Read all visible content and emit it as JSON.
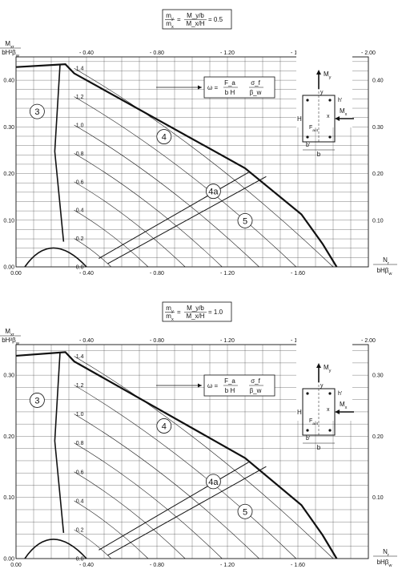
{
  "chart_data": [
    {
      "type": "interaction-diagram",
      "ratio_label": {
        "left_num": "m_y",
        "left_den": "m_x",
        "mid_num": "M_y/b",
        "mid_den": "M_x/H",
        "value": "= 0.5"
      },
      "ylabel": {
        "num": "M_xr",
        "den": "bH²β_w"
      },
      "xlabel": {
        "num": "N_r",
        "den": "bHβ_w"
      },
      "xlim": [
        0.0,
        -2.0
      ],
      "ylim": [
        0.0,
        0.45
      ],
      "bottom_ticks": [
        "0.00",
        "- 0.40",
        "- 0.80",
        "- 1.20",
        "- 1.60"
      ],
      "top_ticks": [
        "- 0.40",
        "- 0.80",
        "- 1.20",
        "- 1.60",
        "- 2.00"
      ],
      "left_ticks": [
        "0.00",
        "0.10",
        "0.20",
        "0.30",
        "0.40"
      ],
      "right_ticks": [
        "0.10",
        "0.20",
        "0.30",
        "0.40"
      ],
      "omega_values": [
        "1.4",
        "1.2",
        "1.0",
        "0.8",
        "0.6",
        "0.4",
        "0.2",
        "0.0"
      ],
      "zones": [
        "3",
        "4",
        "4a",
        "5"
      ],
      "omega_formula": {
        "prefix": "ω =",
        "a_num": "F_a",
        "a_den": "b H",
        "b_num": "σ_f",
        "b_den": "β_w"
      },
      "section_labels": {
        "My": "M_y",
        "Mx": "M_x",
        "y": "y",
        "x": "x",
        "H": "H",
        "b": "b",
        "bp": "b'",
        "hp": "h'",
        "Fa4": "F_a/4"
      }
    },
    {
      "type": "interaction-diagram",
      "ratio_label": {
        "left_num": "m_y",
        "left_den": "m_x",
        "mid_num": "M_y/b",
        "mid_den": "M_x/H",
        "value": "= 1.0"
      },
      "ylabel": {
        "num": "M_xr",
        "den": "bH²β_w"
      },
      "xlabel": {
        "num": "N_r",
        "den": "bHβ_w"
      },
      "xlim": [
        0.0,
        -2.0
      ],
      "ylim": [
        0.0,
        0.35
      ],
      "bottom_ticks": [
        "0.00",
        "- 0.40",
        "- 0.80",
        "- 1.20",
        "- 1.60"
      ],
      "top_ticks": [
        "- 0.40",
        "- 0.80",
        "- 1.20",
        "- 1.60",
        "- 2.00"
      ],
      "left_ticks": [
        "0.00",
        "0.10",
        "0.20",
        "0.30"
      ],
      "right_ticks": [
        "0.10",
        "0.20",
        "0.30"
      ],
      "omega_values": [
        "1.4",
        "1.2",
        "1.0",
        "0.8",
        "0.6",
        "0.4",
        "0.2",
        "0.0"
      ],
      "zones": [
        "3",
        "4",
        "4a",
        "5"
      ],
      "omega_formula": {
        "prefix": "ω =",
        "a_num": "F_a",
        "a_den": "b H",
        "b_num": "σ_f",
        "b_den": "β_w"
      },
      "section_labels": {
        "My": "M_y",
        "Mx": "M_x",
        "y": "y",
        "x": "x",
        "H": "H",
        "b": "b",
        "bp": "b'",
        "hp": "h'",
        "Fa4": "F_a/4"
      }
    }
  ]
}
